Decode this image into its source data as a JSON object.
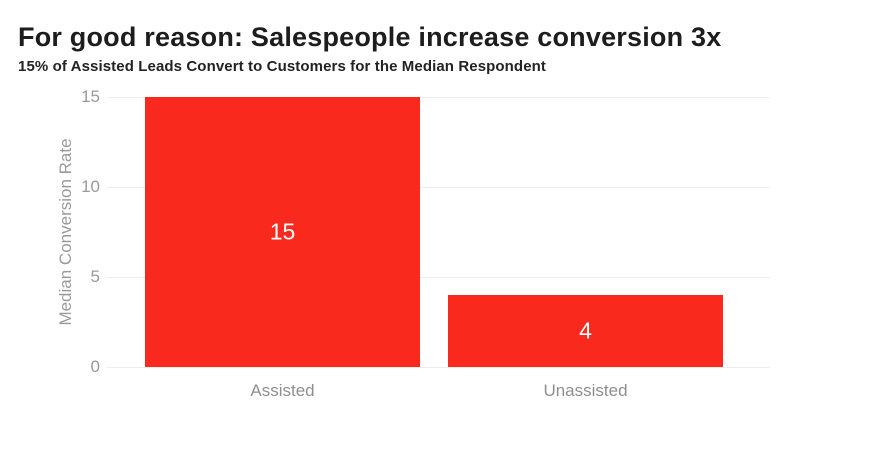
{
  "header": {
    "title": "For good reason: Salespeople increase conversion 3x",
    "subtitle": "15% of Assisted Leads Convert to Customers for the Median Respondent"
  },
  "chart_data": {
    "type": "bar",
    "title": "For good reason: Salespeople increase conversion 3x",
    "subtitle": "15% of Assisted Leads Convert to Customers for the Median Respondent",
    "categories": [
      "Assisted",
      "Unassisted"
    ],
    "values": [
      15,
      4
    ],
    "bar_labels": [
      "15",
      "4"
    ],
    "xlabel": "",
    "ylabel": "Median Conversion Rate",
    "ylim": [
      0,
      15
    ],
    "yticks": [
      0,
      5,
      10,
      15
    ],
    "grid": true,
    "legend_position": "none",
    "orientation": "vertical"
  },
  "colors": {
    "bar": "#f9291e",
    "bar_label": "#ffffff",
    "axis_text": "#999999",
    "gridline": "#ededed",
    "title": "#1d1d1d"
  }
}
